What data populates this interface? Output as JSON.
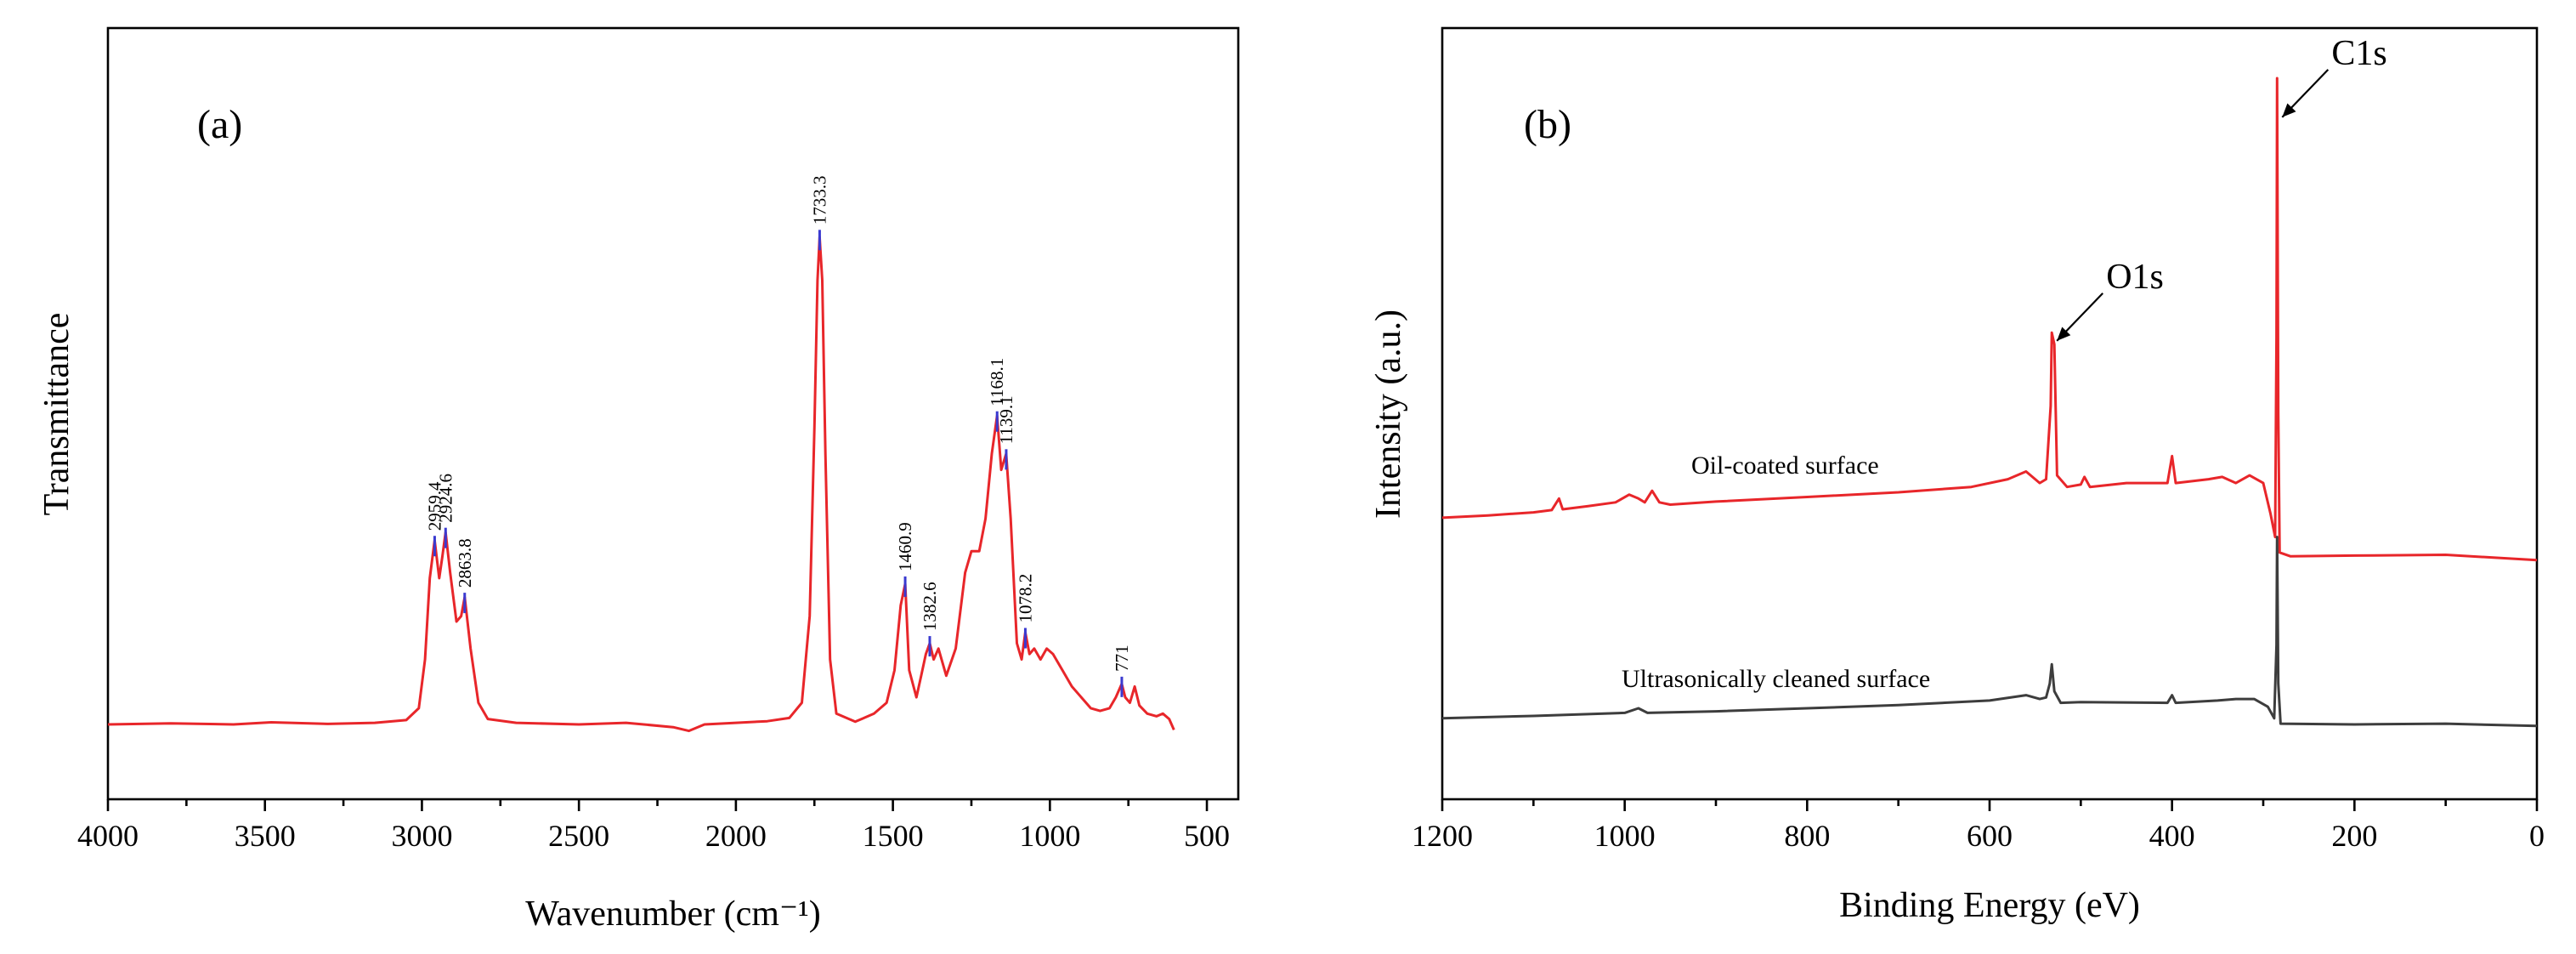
{
  "chart_data": [
    {
      "type": "line",
      "panel_label": "(a)",
      "xlabel": "Wavenumber (cm⁻¹)",
      "ylabel": "Transmittance",
      "xlim": [
        4000,
        400
      ],
      "ylim": [
        0,
        1
      ],
      "x_ticks": [
        4000,
        3500,
        3000,
        2500,
        2000,
        1500,
        1000,
        500
      ],
      "x_tick_labels": [
        "4000",
        "3500",
        "3000",
        "2500",
        "2000",
        "1500",
        "1000",
        "500"
      ],
      "line_color": "#e8262a",
      "peak_marker_color": "#3a3ad0",
      "peaks": [
        {
          "x": 2959.4,
          "label": "2959.4",
          "y": 0.345
        },
        {
          "x": 2924.6,
          "label": "2924.6",
          "y": 0.36
        },
        {
          "x": 2863.8,
          "label": "2863.8",
          "y": 0.24
        },
        {
          "x": 1733.3,
          "label": "1733.3",
          "y": 0.91
        },
        {
          "x": 1460.9,
          "label": "1460.9",
          "y": 0.27
        },
        {
          "x": 1382.6,
          "label": "1382.6",
          "y": 0.16
        },
        {
          "x": 1168.1,
          "label": "1168.1",
          "y": 0.575
        },
        {
          "x": 1139.1,
          "label": "1139.1",
          "y": 0.505
        },
        {
          "x": 1078.2,
          "label": "1078.2",
          "y": 0.175
        },
        {
          "x": 771,
          "label": "771",
          "y": 0.085
        }
      ],
      "series": [
        {
          "name": "FTIR spectrum",
          "points": [
            [
              4000,
              0.0
            ],
            [
              3800,
              0.002
            ],
            [
              3600,
              0.0
            ],
            [
              3480,
              0.004
            ],
            [
              3300,
              0.001
            ],
            [
              3150,
              0.003
            ],
            [
              3050,
              0.008
            ],
            [
              3010,
              0.03
            ],
            [
              2990,
              0.12
            ],
            [
              2975,
              0.27
            ],
            [
              2959.4,
              0.34
            ],
            [
              2945,
              0.27
            ],
            [
              2935,
              0.31
            ],
            [
              2924.6,
              0.355
            ],
            [
              2910,
              0.28
            ],
            [
              2890,
              0.19
            ],
            [
              2875,
              0.2
            ],
            [
              2863.8,
              0.235
            ],
            [
              2845,
              0.14
            ],
            [
              2820,
              0.04
            ],
            [
              2790,
              0.01
            ],
            [
              2700,
              0.003
            ],
            [
              2500,
              0.0
            ],
            [
              2350,
              0.003
            ],
            [
              2200,
              -0.005
            ],
            [
              2150,
              -0.012
            ],
            [
              2100,
              0.0
            ],
            [
              2000,
              0.003
            ],
            [
              1900,
              0.006
            ],
            [
              1830,
              0.012
            ],
            [
              1790,
              0.04
            ],
            [
              1765,
              0.2
            ],
            [
              1750,
              0.55
            ],
            [
              1740,
              0.82
            ],
            [
              1733.3,
              0.9
            ],
            [
              1725,
              0.82
            ],
            [
              1715,
              0.5
            ],
            [
              1700,
              0.12
            ],
            [
              1680,
              0.02
            ],
            [
              1620,
              0.005
            ],
            [
              1560,
              0.02
            ],
            [
              1520,
              0.04
            ],
            [
              1495,
              0.1
            ],
            [
              1475,
              0.22
            ],
            [
              1460.9,
              0.26
            ],
            [
              1448,
              0.1
            ],
            [
              1425,
              0.05
            ],
            [
              1410,
              0.09
            ],
            [
              1395,
              0.13
            ],
            [
              1382.6,
              0.15
            ],
            [
              1370,
              0.12
            ],
            [
              1355,
              0.14
            ],
            [
              1330,
              0.09
            ],
            [
              1300,
              0.14
            ],
            [
              1270,
              0.28
            ],
            [
              1250,
              0.32
            ],
            [
              1225,
              0.32
            ],
            [
              1205,
              0.38
            ],
            [
              1185,
              0.5
            ],
            [
              1168.1,
              0.57
            ],
            [
              1155,
              0.47
            ],
            [
              1139.1,
              0.5
            ],
            [
              1125,
              0.38
            ],
            [
              1105,
              0.15
            ],
            [
              1090,
              0.12
            ],
            [
              1078.2,
              0.17
            ],
            [
              1065,
              0.13
            ],
            [
              1050,
              0.14
            ],
            [
              1030,
              0.12
            ],
            [
              1010,
              0.14
            ],
            [
              990,
              0.13
            ],
            [
              960,
              0.1
            ],
            [
              930,
              0.07
            ],
            [
              900,
              0.05
            ],
            [
              870,
              0.03
            ],
            [
              840,
              0.025
            ],
            [
              810,
              0.03
            ],
            [
              790,
              0.05
            ],
            [
              771,
              0.075
            ],
            [
              760,
              0.05
            ],
            [
              745,
              0.04
            ],
            [
              730,
              0.07
            ],
            [
              715,
              0.035
            ],
            [
              690,
              0.02
            ],
            [
              660,
              0.015
            ],
            [
              640,
              0.02
            ],
            [
              620,
              0.01
            ],
            [
              605,
              -0.01
            ]
          ]
        }
      ]
    },
    {
      "type": "line",
      "panel_label": "(b)",
      "xlabel": "Binding Energy (eV)",
      "ylabel": "Intensity (a.u.)",
      "xlim": [
        1200,
        0
      ],
      "ylim": [
        0,
        1
      ],
      "x_ticks": [
        1200,
        1000,
        800,
        600,
        400,
        200,
        0
      ],
      "x_tick_labels": [
        "1200",
        "1000",
        "800",
        "600",
        "400",
        "200",
        "0"
      ],
      "annotations": [
        {
          "text": "C1s",
          "x": 284.8,
          "y": 0.88
        },
        {
          "text": "O1s",
          "x": 531.8,
          "y": 0.59
        }
      ],
      "series": [
        {
          "name": "Oil-coated surface",
          "color": "#e8262a",
          "points": [
            [
              1200,
              0.365
            ],
            [
              1150,
              0.368
            ],
            [
              1100,
              0.372
            ],
            [
              1080,
              0.375
            ],
            [
              1072,
              0.39
            ],
            [
              1068,
              0.376
            ],
            [
              1040,
              0.38
            ],
            [
              1010,
              0.385
            ],
            [
              995,
              0.395
            ],
            [
              985,
              0.39
            ],
            [
              978,
              0.385
            ],
            [
              970,
              0.4
            ],
            [
              962,
              0.385
            ],
            [
              950,
              0.382
            ],
            [
              900,
              0.386
            ],
            [
              800,
              0.392
            ],
            [
              700,
              0.398
            ],
            [
              620,
              0.405
            ],
            [
              580,
              0.415
            ],
            [
              560,
              0.425
            ],
            [
              545,
              0.41
            ],
            [
              538,
              0.415
            ],
            [
              533,
              0.51
            ],
            [
              531.8,
              0.605
            ],
            [
              529,
              0.59
            ],
            [
              526,
              0.42
            ],
            [
              515,
              0.405
            ],
            [
              500,
              0.408
            ],
            [
              496,
              0.418
            ],
            [
              490,
              0.405
            ],
            [
              450,
              0.41
            ],
            [
              405,
              0.41
            ],
            [
              400,
              0.445
            ],
            [
              396,
              0.41
            ],
            [
              360,
              0.415
            ],
            [
              345,
              0.418
            ],
            [
              330,
              0.41
            ],
            [
              315,
              0.42
            ],
            [
              300,
              0.41
            ],
            [
              292,
              0.37
            ],
            [
              287,
              0.34
            ],
            [
              285.5,
              0.6
            ],
            [
              284.8,
              0.935
            ],
            [
              283.5,
              0.5
            ],
            [
              282,
              0.32
            ],
            [
              270,
              0.315
            ],
            [
              200,
              0.316
            ],
            [
              100,
              0.317
            ],
            [
              0,
              0.31
            ]
          ]
        },
        {
          "name": "Ultrasonically cleaned surface",
          "color": "#3d3d3d",
          "points": [
            [
              1200,
              0.105
            ],
            [
              1100,
              0.108
            ],
            [
              1000,
              0.112
            ],
            [
              985,
              0.118
            ],
            [
              975,
              0.112
            ],
            [
              900,
              0.114
            ],
            [
              800,
              0.118
            ],
            [
              700,
              0.122
            ],
            [
              600,
              0.128
            ],
            [
              560,
              0.135
            ],
            [
              545,
              0.13
            ],
            [
              538,
              0.132
            ],
            [
              534,
              0.15
            ],
            [
              531.8,
              0.175
            ],
            [
              529,
              0.14
            ],
            [
              522,
              0.125
            ],
            [
              500,
              0.126
            ],
            [
              405,
              0.125
            ],
            [
              400,
              0.135
            ],
            [
              396,
              0.125
            ],
            [
              350,
              0.128
            ],
            [
              330,
              0.13
            ],
            [
              310,
              0.13
            ],
            [
              295,
              0.12
            ],
            [
              288,
              0.105
            ],
            [
              285.5,
              0.2
            ],
            [
              284.8,
              0.34
            ],
            [
              283.5,
              0.15
            ],
            [
              281,
              0.098
            ],
            [
              200,
              0.097
            ],
            [
              100,
              0.098
            ],
            [
              0,
              0.095
            ]
          ]
        }
      ]
    }
  ]
}
